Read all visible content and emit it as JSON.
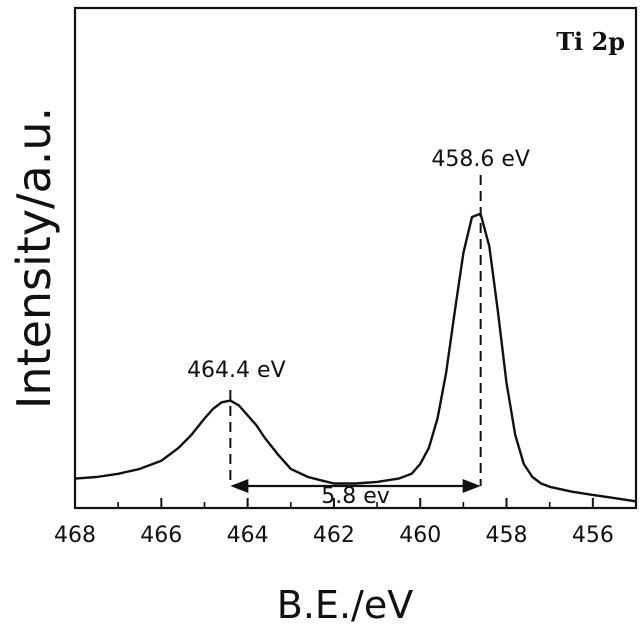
{
  "chart_data": {
    "type": "line",
    "title": "Ti 2p",
    "xlabel": "B.E./eV",
    "ylabel": "Intensity/a.u.",
    "xlim": [
      468,
      455
    ],
    "x_reversed": true,
    "ylim": [
      0,
      1
    ],
    "grid": false,
    "xticks": [
      468,
      466,
      464,
      462,
      460,
      458,
      456
    ],
    "series": [
      {
        "x": [
          468,
          467.5,
          467,
          466.5,
          466,
          465.6,
          465.3,
          465,
          464.8,
          464.6,
          464.4,
          464.2,
          464,
          463.8,
          463.6,
          463.3,
          463,
          462.6,
          462.3,
          462,
          461.5,
          461,
          460.5,
          460.2,
          460,
          459.8,
          459.6,
          459.4,
          459.2,
          459,
          458.8,
          458.6,
          458.4,
          458.2,
          458,
          457.8,
          457.6,
          457.4,
          457.2,
          457,
          456.5,
          456,
          455.5,
          455
        ],
        "y": [
          0.035,
          0.04,
          0.05,
          0.065,
          0.09,
          0.13,
          0.17,
          0.22,
          0.25,
          0.27,
          0.275,
          0.26,
          0.23,
          0.2,
          0.16,
          0.11,
          0.065,
          0.04,
          0.03,
          0.02,
          0.02,
          0.025,
          0.035,
          0.05,
          0.08,
          0.13,
          0.22,
          0.36,
          0.55,
          0.73,
          0.84,
          0.85,
          0.75,
          0.55,
          0.33,
          0.17,
          0.08,
          0.04,
          0.02,
          0.01,
          -0.005,
          -0.015,
          -0.025,
          -0.035
        ]
      }
    ],
    "annotations": [
      {
        "text": "464.4 eV",
        "x": 464.4
      },
      {
        "text": "458.6 eV",
        "x": 458.6
      },
      {
        "text": "5.8 ev",
        "from": 464.4,
        "to": 458.6
      }
    ]
  }
}
